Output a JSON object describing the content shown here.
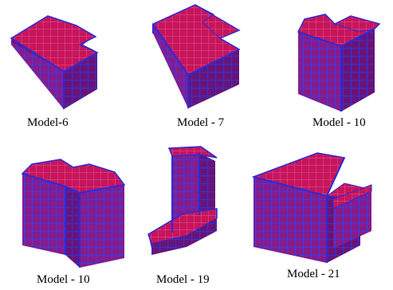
{
  "colors": {
    "frame": "#2b2bd9",
    "top_fill": "#c8145a",
    "front_fill": "#7a1a7e",
    "side_fill": "#6a1070",
    "grid_top": "#c63a8c",
    "grid_wall": "#4a3ad0",
    "background": "#ffffff"
  },
  "models": [
    {
      "caption": "Model-6",
      "shape": "l-shaped-tower-tall"
    },
    {
      "caption": "Model - 7",
      "shape": "l-shaped-block"
    },
    {
      "caption": "Model - 10",
      "shape": "t-shaped-tower"
    },
    {
      "caption": "Model - 10",
      "shape": "t-shaped-tower-front"
    },
    {
      "caption": "Model - 19",
      "shape": "tower-with-podium"
    },
    {
      "caption": "Model - 21",
      "shape": "slab-with-podium"
    }
  ]
}
